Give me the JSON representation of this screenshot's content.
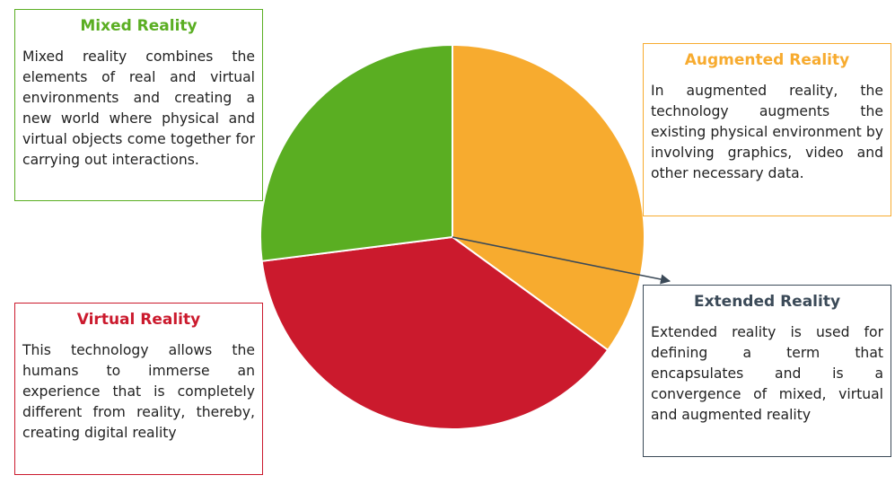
{
  "colors": {
    "mixed": "#5aae22",
    "augmented": "#f7ab2f",
    "virtual": "#cb1a2d",
    "extended": "#3b4a58",
    "slice_border": "#ffffff",
    "text": "#222222"
  },
  "slices": [
    {
      "key": "augmented",
      "name": "Augmented Reality",
      "value": 35
    },
    {
      "key": "virtual",
      "name": "Virtual Reality",
      "value": 38
    },
    {
      "key": "mixed",
      "name": "Mixed Reality",
      "value": 27
    }
  ],
  "cards": {
    "mixed": {
      "title": "Mixed Reality",
      "body": "Mixed reality combines the elements of real and virtual environments and creating a new world where physical and virtual objects come together for carrying out interactions."
    },
    "augmented": {
      "title": "Augmented Reality",
      "body": "In augmented reality, the technology augments the existing physical environment by involving graphics, video and other necessary data."
    },
    "virtual": {
      "title": "Virtual Reality",
      "body": "This technology allows the humans to immerse an experience that is completely different from reality, thereby, creating digital reality"
    },
    "extended": {
      "title": "Extended Reality",
      "body": "Extended reality is used for defining a term that encapsulates and is a convergence of mixed, virtual and augmented reality"
    }
  }
}
